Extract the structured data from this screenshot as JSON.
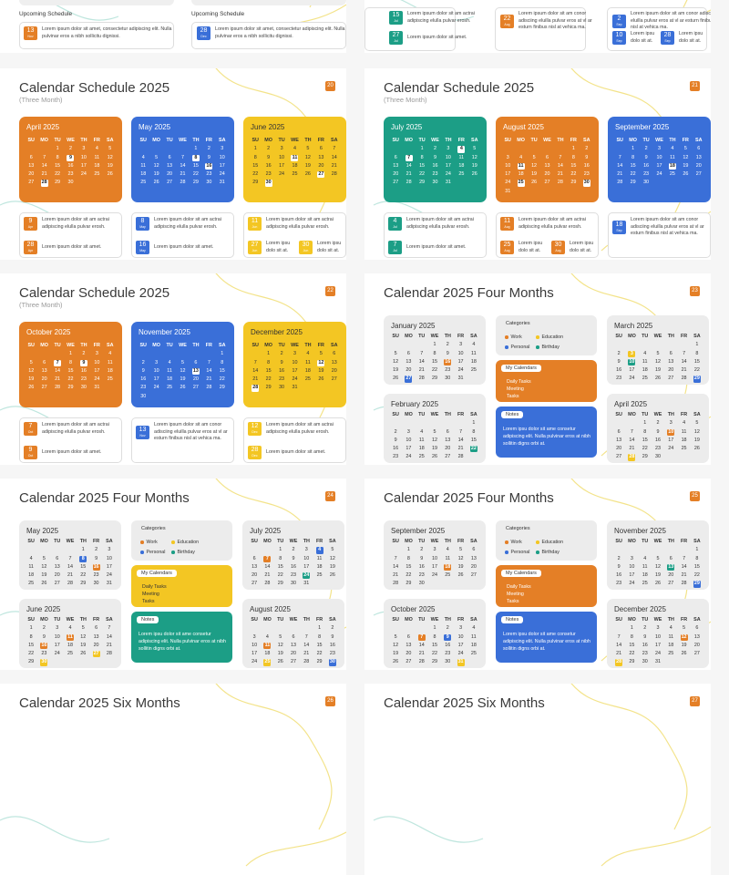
{
  "colors": {
    "orange": "#e47f26",
    "blue": "#3a6fd8",
    "yellow": "#f3c623",
    "teal": "#1c9e86",
    "gray_panel": "#ececec",
    "work": "#e47f26",
    "education": "#f3c623",
    "personal": "#3a6fd8",
    "birthday": "#1c9e86"
  },
  "weekdays": [
    "SU",
    "MO",
    "TU",
    "WE",
    "TH",
    "FR",
    "SA"
  ],
  "lorem_short": "Lorem ipsum dolor sit am actrai adipiscing elulla pulvar erosh.",
  "lorem_tiny": "Lorem ipsu dolo sit at.",
  "lorem_one": "Lorem ipsum dolor sit amet.",
  "lorem_long": "Lorem ipsum dolor sit am conor adisciing eluilla pulvar eros at vl ar esturn finibus nisl at vehica ma.",
  "lorem_med": "Lorem ipsum dolor sit amet, consectetur adipiscing elit. Nulla pulvinar eros a nibh sollicitu dignissi.",
  "top": {
    "upcoming": "Upcoming Schedule",
    "left_events": [
      {
        "day": "13",
        "mon": "Nov",
        "color": "#e47f26"
      },
      {
        "day": "28",
        "mon": "Dec",
        "color": "#3a6fd8"
      }
    ],
    "right_events": [
      {
        "day": "15",
        "mon": "Jul",
        "color": "#1c9e86"
      },
      {
        "day": "27",
        "mon": "Jul",
        "color": "#1c9e86"
      },
      {
        "day": "22",
        "mon": "Aug",
        "color": "#e47f26"
      },
      {
        "day": "2",
        "mon": "Sep",
        "color": "#3a6fd8"
      },
      {
        "day": "10",
        "mon": "Sep",
        "color": "#3a6fd8"
      },
      {
        "day": "28",
        "mon": "Sep",
        "color": "#3a6fd8"
      }
    ]
  },
  "slides": [
    {
      "title": "Calendar Schedule 2025",
      "subtitle": "(Three Month)",
      "num": "20",
      "type": "three",
      "months": [
        {
          "name": "April 2025",
          "color": "#e47f26",
          "start": 2,
          "days": 30,
          "hl": [
            9,
            28
          ]
        },
        {
          "name": "May 2025",
          "color": "#3a6fd8",
          "start": 4,
          "days": 31,
          "hl": [
            8,
            16
          ]
        },
        {
          "name": "June 2025",
          "color": "#f3c623",
          "start": 0,
          "days": 30,
          "hl": [
            11,
            27,
            30
          ],
          "dark": true
        }
      ],
      "events": [
        [
          {
            "day": "9",
            "mon": "Apr",
            "text": "short"
          },
          {
            "day": "28",
            "mon": "Apr",
            "text": "one"
          }
        ],
        [
          {
            "day": "8",
            "mon": "May",
            "text": "short"
          },
          {
            "day": "16",
            "mon": "May",
            "text": "one"
          }
        ],
        [
          {
            "day": "11",
            "mon": "Jun",
            "text": "short"
          },
          {
            "day": "27",
            "mon": "Jun",
            "text": "tiny"
          },
          {
            "day": "30",
            "mon": "Jun",
            "text": "tiny"
          }
        ]
      ]
    },
    {
      "title": "Calendar Schedule 2025",
      "subtitle": "(Three Month)",
      "num": "21",
      "type": "three",
      "months": [
        {
          "name": "July 2025",
          "color": "#1c9e86",
          "start": 2,
          "days": 31,
          "hl": [
            4,
            7
          ]
        },
        {
          "name": "August 2025",
          "color": "#e47f26",
          "start": 5,
          "days": 31,
          "hl": [
            11,
            25,
            30
          ]
        },
        {
          "name": "September 2025",
          "color": "#3a6fd8",
          "start": 1,
          "days": 30,
          "hl": [
            18
          ]
        }
      ],
      "events": [
        [
          {
            "day": "4",
            "mon": "Jul",
            "text": "short"
          },
          {
            "day": "7",
            "mon": "Jul",
            "text": "one"
          }
        ],
        [
          {
            "day": "11",
            "mon": "Aug",
            "text": "short"
          },
          {
            "day": "25",
            "mon": "Aug",
            "text": "tiny"
          },
          {
            "day": "30",
            "mon": "Aug",
            "text": "tiny"
          }
        ],
        [
          {
            "day": "18",
            "mon": "Sep",
            "text": "long"
          }
        ]
      ]
    },
    {
      "title": "Calendar Schedule 2025",
      "subtitle": "(Three Month)",
      "num": "22",
      "type": "three",
      "months": [
        {
          "name": "October 2025",
          "color": "#e47f26",
          "start": 3,
          "days": 31,
          "hl": [
            7,
            9
          ]
        },
        {
          "name": "November 2025",
          "color": "#3a6fd8",
          "start": 6,
          "days": 30,
          "hl": [
            13
          ]
        },
        {
          "name": "December 2025",
          "color": "#f3c623",
          "start": 1,
          "days": 31,
          "hl": [
            12,
            28
          ],
          "dark": true
        }
      ],
      "events": [
        [
          {
            "day": "7",
            "mon": "Oct",
            "text": "short"
          },
          {
            "day": "9",
            "mon": "Oct",
            "text": "one"
          }
        ],
        [
          {
            "day": "13",
            "mon": "Nov",
            "text": "long"
          }
        ],
        [
          {
            "day": "12",
            "mon": "Dec",
            "text": "short"
          },
          {
            "day": "28",
            "mon": "Dec",
            "text": "one"
          }
        ]
      ]
    },
    {
      "title": "Calendar 2025 Four Months",
      "num": "23",
      "type": "four",
      "accent": "#e47f26",
      "notes_color": "#3a6fd8",
      "months": [
        {
          "name": "January 2025",
          "start": 3,
          "days": 31,
          "hx": {
            "16": "#e47f26",
            "27": "#3a6fd8"
          }
        },
        {
          "name": "February 2025",
          "start": 6,
          "days": 28,
          "hx": {
            "22": "#1c9e86"
          }
        },
        {
          "name": "March 2025",
          "start": 6,
          "days": 31,
          "hx": {
            "3": "#f3c623",
            "10": "#1c9e86",
            "29": "#3a6fd8"
          }
        },
        {
          "name": "April 2025",
          "start": 2,
          "days": 30,
          "hx": {
            "10": "#e47f26",
            "28": "#f3c623"
          }
        }
      ]
    },
    {
      "title": "Calendar 2025 Four Months",
      "num": "24",
      "type": "four",
      "accent": "#f3c623",
      "notes_color": "#1c9e86",
      "months": [
        {
          "name": "May 2025",
          "start": 4,
          "days": 31,
          "hx": {
            "8": "#3a6fd8",
            "16": "#e47f26"
          }
        },
        {
          "name": "June 2025",
          "start": 0,
          "days": 30,
          "hx": {
            "11": "#e47f26",
            "16": "#e47f26",
            "27": "#f3c623",
            "30": "#f3c623"
          }
        },
        {
          "name": "July 2025",
          "start": 2,
          "days": 31,
          "hx": {
            "4": "#3a6fd8",
            "7": "#e47f26",
            "24": "#1c9e86"
          }
        },
        {
          "name": "August 2025",
          "start": 5,
          "days": 31,
          "hx": {
            "11": "#e47f26",
            "25": "#f3c623",
            "30": "#3a6fd8"
          }
        }
      ]
    },
    {
      "title": "Calendar 2025 Four Months",
      "num": "25",
      "type": "four",
      "accent": "#e47f26",
      "notes_color": "#3a6fd8",
      "months": [
        {
          "name": "September 2025",
          "start": 1,
          "days": 30,
          "hx": {
            "18": "#e47f26"
          }
        },
        {
          "name": "October 2025",
          "start": 3,
          "days": 31,
          "hx": {
            "7": "#e47f26",
            "9": "#3a6fd8",
            "31": "#f3c623"
          }
        },
        {
          "name": "November 2025",
          "start": 6,
          "days": 30,
          "hx": {
            "13": "#1c9e86",
            "29": "#3a6fd8"
          }
        },
        {
          "name": "December 2025",
          "start": 1,
          "days": 31,
          "hx": {
            "12": "#e47f26",
            "28": "#f3c623"
          }
        }
      ]
    },
    {
      "title": "Calendar 2025 Six Months",
      "num": "26",
      "type": "six"
    },
    {
      "title": "Calendar 2025 Six Months",
      "num": "27",
      "type": "six"
    }
  ],
  "four_common": {
    "categories": "Categories",
    "legend": [
      {
        "label": "Work",
        "key": "work"
      },
      {
        "label": "Education",
        "key": "education"
      },
      {
        "label": "Personal",
        "key": "personal"
      },
      {
        "label": "Birthday",
        "key": "birthday"
      }
    ],
    "my_calendars": "My Calendars",
    "tasks": [
      "Daily Tasks",
      "Meeting",
      "Tasks"
    ],
    "notes": "Notes",
    "notes_text": "Lorem ipsu dolor sit ame consetur adipiscing elit. Nulla pulvinar eros at nibh sollitin digns orbi at."
  }
}
